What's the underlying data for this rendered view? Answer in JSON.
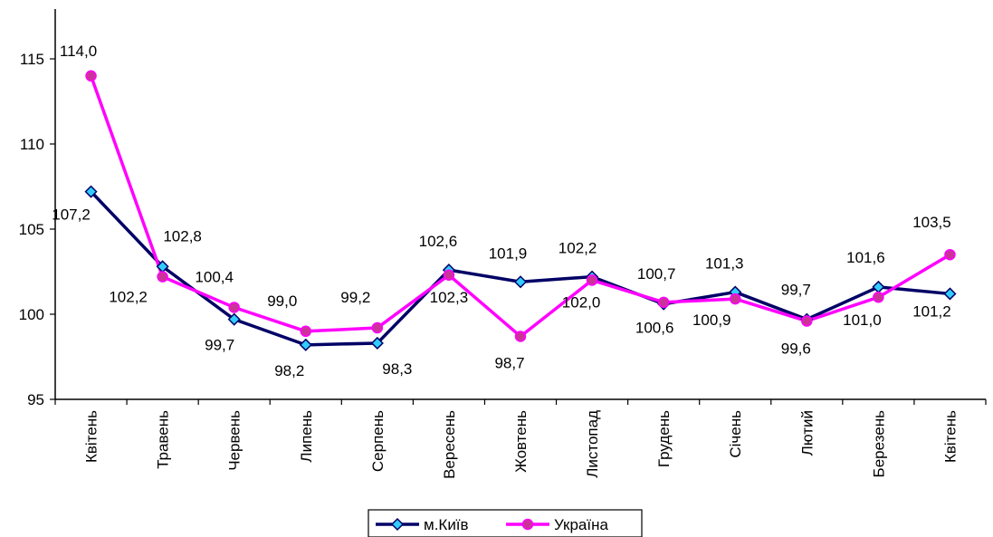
{
  "chart_data": {
    "type": "line",
    "title": "",
    "xlabel": "",
    "ylabel": "",
    "ylim": [
      95,
      115
    ],
    "y_ticks": [
      95,
      100,
      105,
      110,
      115
    ],
    "grid": false,
    "legend_position": "bottom",
    "categories": [
      "Квітень",
      "Травень",
      "Червень",
      "Липень",
      "Серпень",
      "Вересень",
      "Жовтень",
      "Листопад",
      "Грудень",
      "Січень",
      "Лютий",
      "Березень",
      "Квітень"
    ],
    "series": [
      {
        "name": "м.Київ",
        "values": [
          107.2,
          102.8,
          99.7,
          98.2,
          98.3,
          102.6,
          101.9,
          102.2,
          100.6,
          101.3,
          99.7,
          101.6,
          101.2
        ],
        "labels": [
          "107,2",
          "102,8",
          "99,7",
          "98,2",
          "98,3",
          "102,6",
          "101,9",
          "102,2",
          "100,6",
          "101,3",
          "99,7",
          "101,6",
          "101,2"
        ],
        "line_color": "#000066",
        "marker_color": "#33CCFF",
        "marker": "diamond"
      },
      {
        "name": "Україна",
        "values": [
          114.0,
          102.2,
          100.4,
          99.0,
          99.2,
          102.3,
          98.7,
          102.0,
          100.7,
          100.9,
          99.6,
          101.0,
          103.5
        ],
        "labels": [
          "114,0",
          "102,2",
          "100,4",
          "99,0",
          "99,2",
          "102,3",
          "98,7",
          "102,0",
          "100,7",
          "100,9",
          "99,6",
          "101,0",
          "103,5"
        ],
        "line_color": "#FF00FF",
        "marker_color": "#CC3399",
        "marker": "circle"
      }
    ]
  }
}
